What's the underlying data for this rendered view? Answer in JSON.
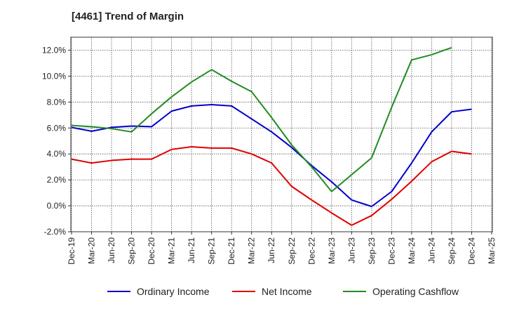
{
  "chart_data": {
    "type": "line",
    "title": "[4461]  Trend of Margin",
    "xlabel": "",
    "ylabel": "",
    "x": [
      "Dec-19",
      "Mar-20",
      "Jun-20",
      "Sep-20",
      "Dec-20",
      "Mar-21",
      "Jun-21",
      "Sep-21",
      "Dec-21",
      "Mar-22",
      "Jun-22",
      "Sep-22",
      "Dec-22",
      "Mar-23",
      "Jun-23",
      "Sep-23",
      "Dec-23",
      "Mar-24",
      "Jun-24",
      "Sep-24",
      "Dec-24",
      "Mar-25"
    ],
    "ylim": [
      -2,
      13
    ],
    "yticks": [
      -2,
      0,
      2,
      4,
      6,
      8,
      10,
      12
    ],
    "ytick_labels": [
      "-2.0%",
      "0.0%",
      "2.0%",
      "4.0%",
      "6.0%",
      "8.0%",
      "10.0%",
      "12.0%"
    ],
    "grid": true,
    "legend_position": "bottom",
    "series": [
      {
        "name": "Ordinary Income",
        "color": "#0000cc",
        "values": [
          6.05,
          5.75,
          6.05,
          6.15,
          6.1,
          7.3,
          7.7,
          7.8,
          7.7,
          6.7,
          5.7,
          4.5,
          3.1,
          1.85,
          0.45,
          -0.05,
          1.1,
          3.3,
          5.7,
          7.25,
          7.45,
          null
        ]
      },
      {
        "name": "Net Income",
        "color": "#e00000",
        "values": [
          3.6,
          3.3,
          3.5,
          3.6,
          3.6,
          4.35,
          4.55,
          4.45,
          4.45,
          4.0,
          3.3,
          1.5,
          0.45,
          -0.55,
          -1.5,
          -0.75,
          0.5,
          1.9,
          3.4,
          4.2,
          4.0,
          null
        ]
      },
      {
        "name": "Operating Cashflow",
        "color": "#228b22",
        "values": [
          6.2,
          6.1,
          5.95,
          5.7,
          7.1,
          8.4,
          9.55,
          10.5,
          9.6,
          8.8,
          6.8,
          4.7,
          3.0,
          1.1,
          2.4,
          3.7,
          7.6,
          11.25,
          11.65,
          12.2,
          null,
          null
        ]
      }
    ]
  }
}
